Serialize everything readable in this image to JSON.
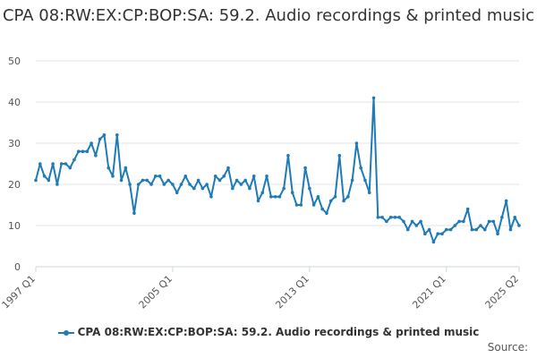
{
  "chart_data": {
    "type": "line",
    "title": "CPA 08:RW:EX:CP:BOP:SA: 59.2. Audio recordings & printed music",
    "xlabel": "",
    "ylabel": "",
    "ylim": [
      0,
      50
    ],
    "yticks": [
      0,
      10,
      20,
      30,
      40,
      50
    ],
    "grid": true,
    "legend_position": "bottom",
    "x_start": "1997 Q1",
    "x_end": "2025 Q2",
    "xtick_labels": [
      "1997 Q1",
      "2005 Q1",
      "2013 Q1",
      "2021 Q1",
      "2025 Q2"
    ],
    "series": [
      {
        "name": "CPA 08:RW:EX:CP:BOP:SA: 59.2. Audio recordings & printed music",
        "color": "#1f7bb6",
        "values": [
          21,
          25,
          22,
          21,
          25,
          20,
          25,
          25,
          24,
          26,
          28,
          28,
          28,
          30,
          27,
          31,
          32,
          24,
          22,
          32,
          21,
          24,
          20,
          13,
          20,
          21,
          21,
          20,
          22,
          22,
          20,
          21,
          20,
          18,
          20,
          22,
          20,
          19,
          21,
          19,
          20,
          17,
          22,
          21,
          22,
          24,
          19,
          21,
          20,
          21,
          19,
          22,
          16,
          18,
          22,
          17,
          17,
          17,
          19,
          27,
          18,
          15,
          15,
          24,
          19,
          15,
          17,
          14,
          13,
          16,
          17,
          27,
          16,
          17,
          21,
          30,
          24,
          21,
          18,
          41,
          12,
          12,
          11,
          12,
          12,
          12,
          11,
          9,
          11,
          10,
          11,
          8,
          9,
          6,
          8,
          8,
          9,
          9,
          10,
          11,
          11,
          14,
          9,
          9,
          10,
          9,
          11,
          11,
          8,
          12,
          16,
          9,
          12,
          10
        ]
      }
    ]
  },
  "legend": {
    "label": "CPA 08:RW:EX:CP:BOP:SA: 59.2. Audio recordings & printed music"
  },
  "source": {
    "label": "Source:"
  }
}
